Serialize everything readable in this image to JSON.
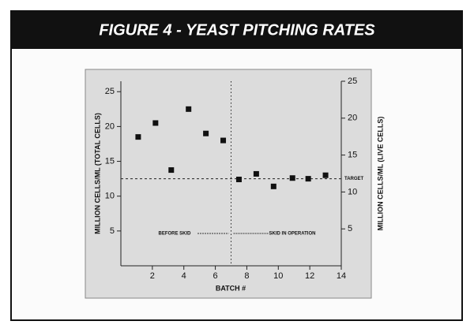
{
  "chart_data": {
    "type": "scatter",
    "title": "FIGURE 4 - YEAST PITCHING RATES",
    "x_label": "BATCH #",
    "y_label": "MILLION CELLS/ML (TOTAL CELLS)",
    "y2_label": "MILLION CELLS/ML (LIVE CELLS)",
    "xlim": [
      0,
      14
    ],
    "xticks": [
      2,
      4,
      6,
      8,
      10,
      12,
      14
    ],
    "ylim": [
      0,
      26.5
    ],
    "yticks": [
      5,
      10,
      15,
      20,
      25
    ],
    "y2lim": [
      0,
      25
    ],
    "y2ticks": [
      5,
      10,
      15,
      20,
      25
    ],
    "series": [
      {
        "color": "#111111",
        "x": [
          1.1,
          2.2,
          3.2,
          4.3,
          5.4,
          6.5,
          7.5,
          8.6,
          9.7,
          10.9,
          11.9,
          13.0
        ],
        "values": [
          18.5,
          20.5,
          13.75,
          22.5,
          19,
          18,
          12.4,
          13.2,
          11.4,
          12.6,
          12.5,
          13
        ]
      }
    ],
    "target": {
      "label": "TARGET",
      "value": 12.5
    },
    "divider": 7,
    "annotations": [
      "BEFORE SKID",
      "SKID IN OPERATION"
    ]
  }
}
